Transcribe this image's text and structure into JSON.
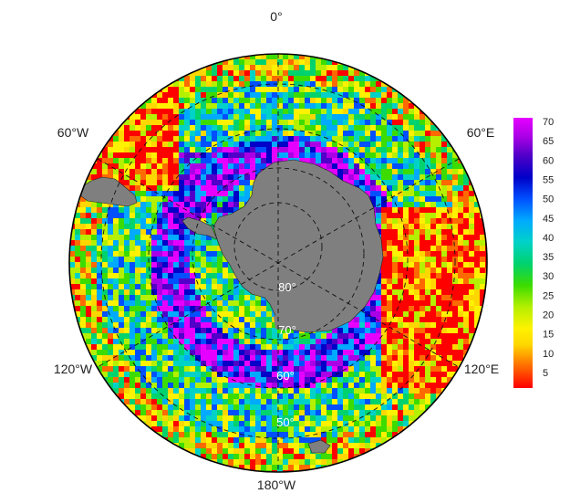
{
  "map": {
    "projection": "south-polar-stereographic",
    "longitude_labels": {
      "top": "0°",
      "upper_left": "60°W",
      "upper_right": "60°E",
      "lower_left": "120°W",
      "lower_right": "120°E",
      "bottom": "180°W"
    },
    "latitude_labels": [
      "80°",
      "70°",
      "60°",
      "50°"
    ],
    "land_color": "#7f7f7f",
    "grid_style": "dashed black"
  },
  "colorbar": {
    "ticks": [
      "70",
      "65",
      "60",
      "55",
      "50",
      "45",
      "40",
      "35",
      "30",
      "25",
      "20",
      "15",
      "10",
      "5"
    ],
    "range": [
      1,
      72
    ],
    "colors": [
      "#ff0000",
      "#ff6a00",
      "#ffd700",
      "#fff200",
      "#b4f000",
      "#3cdc00",
      "#00d26e",
      "#00d2c8",
      "#00aaff",
      "#0050ff",
      "#0000c8",
      "#5000c8",
      "#aa00e6",
      "#e600ff"
    ]
  }
}
